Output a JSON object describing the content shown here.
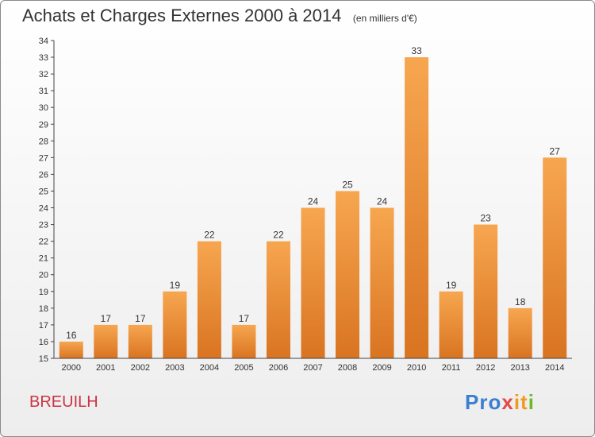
{
  "header": {
    "title": "Achats et Charges Externes 2000 à 2014",
    "units": "(en milliers d'€)"
  },
  "commune": "BREUILH",
  "logo": {
    "text": "Proxiti",
    "parts": [
      "Pro",
      "x",
      "it",
      "i"
    ]
  },
  "colors": {
    "bar_light": "#f7a650",
    "bar_dark": "#d97421",
    "axis": "#444444",
    "grid": "#d8d8d8",
    "label": "#333333",
    "commune": "#cc3344"
  },
  "chart_data": {
    "type": "bar",
    "categories": [
      "2000",
      "2001",
      "2002",
      "2003",
      "2004",
      "2005",
      "2006",
      "2007",
      "2008",
      "2009",
      "2010",
      "2011",
      "2012",
      "2013",
      "2014"
    ],
    "values": [
      16,
      17,
      17,
      19,
      22,
      17,
      22,
      24,
      25,
      24,
      33,
      19,
      23,
      18,
      27
    ],
    "title": "Achats et Charges Externes 2000 à 2014",
    "xlabel": "",
    "ylabel": "",
    "ylim": [
      15,
      34
    ],
    "yticks": [
      15,
      16,
      17,
      18,
      19,
      20,
      21,
      22,
      23,
      24,
      25,
      26,
      27,
      28,
      29,
      30,
      31,
      32,
      33,
      34
    ],
    "grid": false,
    "legend": "none"
  }
}
